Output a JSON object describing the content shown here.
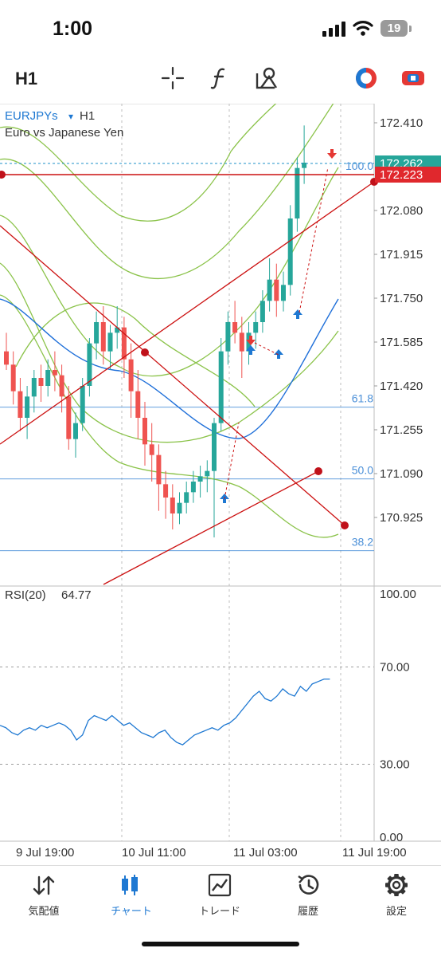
{
  "status_bar": {
    "time": "1:00",
    "battery": "19"
  },
  "toolbar": {
    "timeframe": "H1",
    "icons": [
      "crosshair-icon",
      "function-icon",
      "objects-icon",
      "color-theme-icon",
      "chart-toggle-icon"
    ]
  },
  "chart": {
    "symbol": "EURJPYs",
    "symbol_caret": "▾",
    "timeframe": "H1",
    "description": "Euro vs Japanese Yen",
    "colors": {
      "bull": "#26a69a",
      "bear": "#ef5350",
      "bands": "#8bc34a",
      "ma": "#1e6fd9",
      "lines": "#cc1111",
      "fib": "#4a8fd8",
      "bid_tag": "#26a69a",
      "line_tag": "#e0282d"
    },
    "price_axis": [
      "172.410",
      "172.080",
      "171.915",
      "171.750",
      "171.585",
      "171.420",
      "171.255",
      "171.090",
      "170.925"
    ],
    "bid_price": "172.262",
    "line_price": "172.223",
    "fib_levels": [
      {
        "label": "100.0",
        "price": 172.215
      },
      {
        "label": "61.8",
        "price": 171.34
      },
      {
        "label": "50.0",
        "price": 171.07
      },
      {
        "label": "38.2",
        "price": 170.8
      }
    ],
    "time_axis": [
      "9 Jul 19:00",
      "10 Jul 11:00",
      "11 Jul 03:00",
      "11 Jul 19:00"
    ]
  },
  "rsi": {
    "label": "RSI(20)",
    "value": "64.77",
    "axis": [
      "100.00",
      "70.00",
      "30.00",
      "0.00"
    ]
  },
  "tabs": [
    {
      "label": "気配値",
      "icon": "quotes-icon"
    },
    {
      "label": "チャート",
      "icon": "chart-icon",
      "active": true
    },
    {
      "label": "トレード",
      "icon": "trade-icon"
    },
    {
      "label": "履歴",
      "icon": "history-icon"
    },
    {
      "label": "設定",
      "icon": "settings-icon"
    }
  ]
}
